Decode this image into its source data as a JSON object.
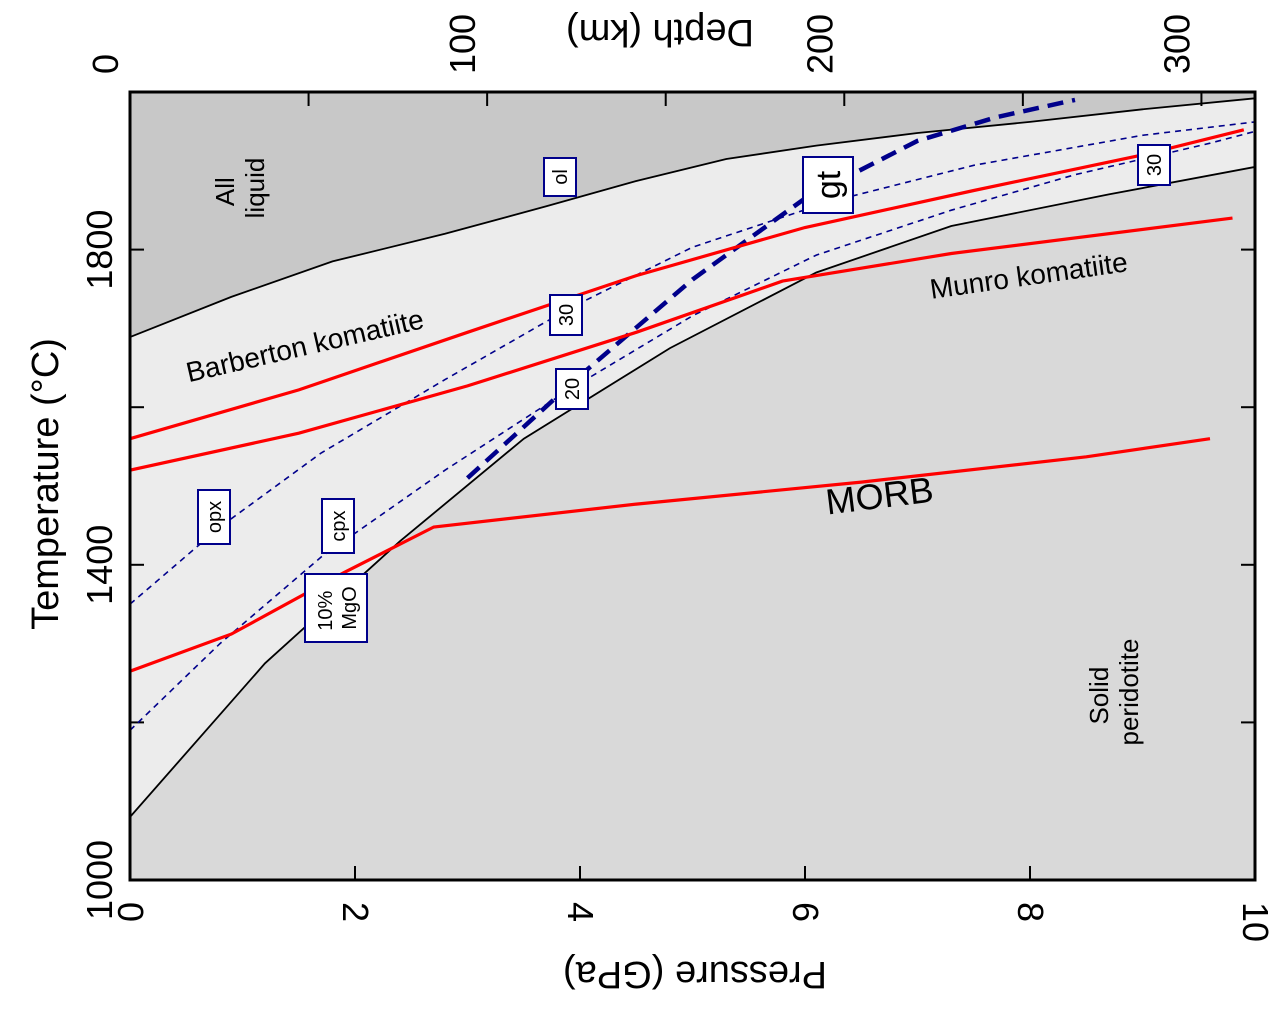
{
  "chart_data": {
    "type": "line",
    "ylabel": "Temperature (°C)",
    "xlabel_bottom": "Pressure (GPa)",
    "xlabel_top": "Depth (km)",
    "y_ticks": [
      "1000",
      "1400",
      "1800"
    ],
    "x_ticks_bottom": [
      "0",
      "2",
      "4",
      "6",
      "8",
      "10"
    ],
    "x_ticks_top": [
      "0",
      "100",
      "200",
      "300"
    ],
    "pressure_range_gpa": [
      0,
      10
    ],
    "temperature_range_c": [
      1000,
      2000
    ],
    "region_labels": {
      "all_liquid": [
        "All",
        "liquid"
      ],
      "solid_peridotite": [
        "Solid",
        "peridotite"
      ]
    },
    "curve_labels": {
      "barberton": "Barberton komatiite",
      "munro": "Munro komatiite",
      "morb": "MORB"
    },
    "box_labels": {
      "ol": "ol",
      "opx": "opx",
      "cpx": "cpx",
      "gt": "gt",
      "mgo_line1": "10%",
      "mgo_line2": "MgO",
      "mgo20": "20",
      "mgo30_mid": "30",
      "mgo30_right": "30"
    },
    "colors": {
      "liquid_region": "#c8c8c8",
      "melting_interval": "#ececec",
      "solid_region": "#d9d9d9",
      "adiabats": "#ff0000",
      "phase_boundaries": "#00008b"
    },
    "liquidus": {
      "pressure_gpa": [
        0,
        0.9,
        1.8,
        2.8,
        3.7,
        4.5,
        5.3,
        6.1,
        7,
        8,
        9,
        10
      ],
      "temperature_c": [
        1689,
        1740,
        1785,
        1820,
        1855,
        1887,
        1915,
        1932,
        1948,
        1962,
        1978,
        1992
      ]
    },
    "solidus": {
      "pressure_gpa": [
        0,
        1.2,
        2.4,
        3.5,
        4.8,
        6.1,
        7.3,
        8.7,
        10
      ],
      "temperature_c": [
        1080,
        1275,
        1430,
        1560,
        1675,
        1771,
        1830,
        1870,
        1905
      ]
    },
    "adiabats": [
      {
        "name": "Barberton komatiite",
        "pressure_gpa": [
          0,
          1.5,
          3,
          4.5,
          6,
          7.5,
          9,
          9.9
        ],
        "temperature_c": [
          1560,
          1622,
          1695,
          1767,
          1828,
          1875,
          1920,
          1952
        ]
      },
      {
        "name": "Munro komatiite",
        "pressure_gpa": [
          0,
          1.5,
          3,
          4.5,
          5.8,
          7.3,
          9.8
        ],
        "temperature_c": [
          1520,
          1567,
          1627,
          1695,
          1760,
          1795,
          1840
        ]
      },
      {
        "name": "MORB",
        "pressure_gpa": [
          0,
          0.9,
          1.9,
          2.7,
          4.5,
          6.5,
          8.5,
          9.6
        ],
        "temperature_c": [
          1265,
          1312,
          1390,
          1448,
          1477,
          1505,
          1537,
          1560
        ]
      }
    ],
    "phase_out_curves": [
      {
        "label": "opx",
        "dashed": true,
        "pressure_gpa": [
          0,
          0.8,
          1.7,
          2.8,
          3.9,
          5,
          6.2,
          7.5,
          9,
          10
        ],
        "temperature_c": [
          1350,
          1448,
          1542,
          1635,
          1725,
          1803,
          1860,
          1907,
          1945,
          1962
        ]
      },
      {
        "label": "cpx",
        "dashed": true,
        "pressure_gpa": [
          0,
          0.8,
          1.7,
          2.8,
          3.9,
          5,
          6.1,
          7.3,
          8.4,
          9.6,
          10
        ],
        "temperature_c": [
          1190,
          1300,
          1410,
          1520,
          1622,
          1716,
          1793,
          1850,
          1895,
          1935,
          1950
        ]
      },
      {
        "label": "gt",
        "dashed": true,
        "pressure_gpa": [
          3,
          4,
          5,
          6,
          7,
          7.7,
          8.4
        ],
        "temperature_c": [
          1510,
          1640,
          1762,
          1865,
          1938,
          1968,
          1990
        ]
      }
    ]
  }
}
